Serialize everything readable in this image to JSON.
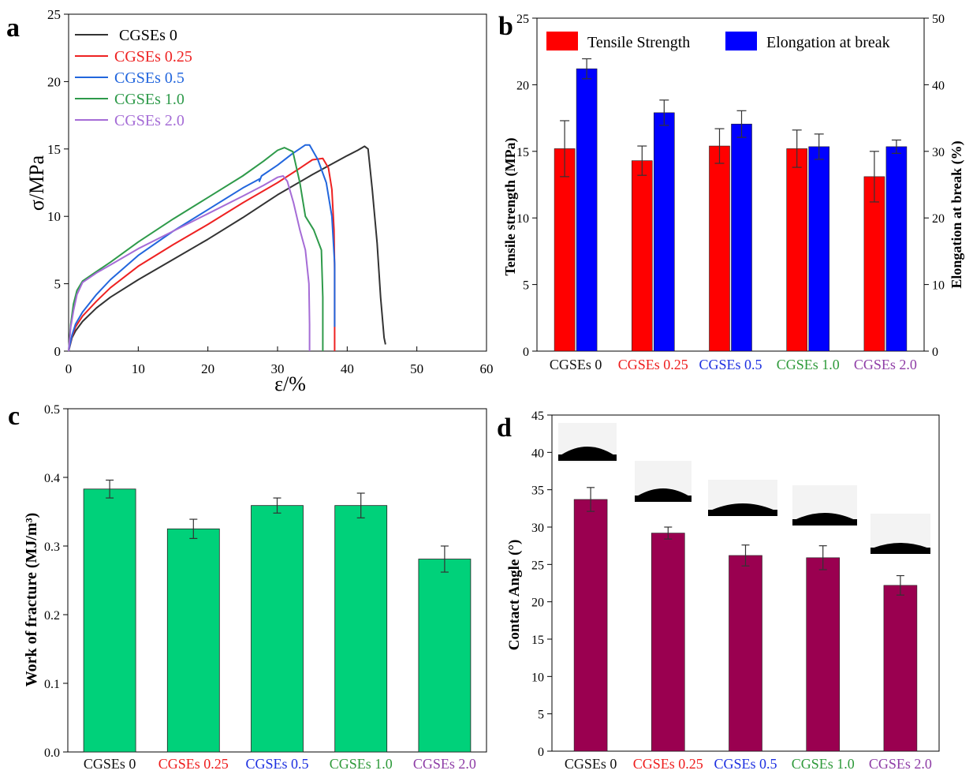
{
  "chart_data": [
    {
      "panel": "a",
      "type": "line",
      "xlabel": "ε/%",
      "ylabel": "σ/MPa",
      "xlim": [
        0,
        60
      ],
      "ylim": [
        0,
        25
      ],
      "xticks": [
        0,
        10,
        20,
        30,
        40,
        50,
        60
      ],
      "yticks": [
        0,
        5,
        10,
        15,
        20,
        25
      ],
      "legend_position": "top-left",
      "series": [
        {
          "name": "CGSEs 0",
          "color": "#333333",
          "points": [
            [
              0,
              0
            ],
            [
              0.5,
              1
            ],
            [
              1,
              1.5
            ],
            [
              2,
              2.2
            ],
            [
              4,
              3.2
            ],
            [
              6,
              4.0
            ],
            [
              10,
              5.3
            ],
            [
              15,
              6.8
            ],
            [
              20,
              8.3
            ],
            [
              25,
              9.9
            ],
            [
              30,
              11.6
            ],
            [
              35,
              13.1
            ],
            [
              40,
              14.5
            ],
            [
              41.5,
              14.9
            ],
            [
              42.5,
              15.2
            ],
            [
              43,
              15.0
            ],
            [
              43.6,
              12.0
            ],
            [
              44.3,
              8.0
            ],
            [
              44.8,
              4.0
            ],
            [
              45.3,
              1.0
            ],
            [
              45.5,
              0.5
            ]
          ]
        },
        {
          "name": "CGSEs 0.25",
          "color": "#ee2222",
          "points": [
            [
              0,
              0
            ],
            [
              0.5,
              1.1
            ],
            [
              1,
              1.8
            ],
            [
              2,
              2.6
            ],
            [
              4,
              3.7
            ],
            [
              6,
              4.7
            ],
            [
              10,
              6.3
            ],
            [
              15,
              7.9
            ],
            [
              20,
              9.4
            ],
            [
              25,
              11.0
            ],
            [
              30,
              12.5
            ],
            [
              33,
              13.5
            ],
            [
              35,
              14.2
            ],
            [
              36.5,
              14.3
            ],
            [
              37.3,
              13.6
            ],
            [
              37.8,
              12.0
            ],
            [
              38.1,
              9.0
            ],
            [
              38.2,
              6.0
            ],
            [
              38.2,
              3.0
            ],
            [
              38.2,
              0
            ]
          ]
        },
        {
          "name": "CGSEs 0.5",
          "color": "#2266dd",
          "points": [
            [
              0,
              0
            ],
            [
              0.5,
              1.2
            ],
            [
              1,
              2.0
            ],
            [
              2,
              2.9
            ],
            [
              4,
              4.2
            ],
            [
              6,
              5.3
            ],
            [
              10,
              7.1
            ],
            [
              15,
              8.9
            ],
            [
              20,
              10.5
            ],
            [
              25,
              12.1
            ],
            [
              27.5,
              12.8
            ],
            [
              27.4,
              12.6
            ],
            [
              27.7,
              13.0
            ],
            [
              30,
              13.8
            ],
            [
              32,
              14.6
            ],
            [
              34,
              15.3
            ],
            [
              34.6,
              15.3
            ],
            [
              35.8,
              14.2
            ],
            [
              37,
              12.5
            ],
            [
              37.8,
              10.0
            ],
            [
              38.2,
              6.5
            ],
            [
              38.2,
              3.0
            ],
            [
              38.2,
              1.8
            ]
          ]
        },
        {
          "name": "CGSEs 1.0",
          "color": "#2e9a4a",
          "points": [
            [
              0,
              0
            ],
            [
              0.3,
              2.0
            ],
            [
              0.7,
              3.5
            ],
            [
              1.2,
              4.5
            ],
            [
              2,
              5.2
            ],
            [
              4,
              5.9
            ],
            [
              6,
              6.6
            ],
            [
              10,
              8.1
            ],
            [
              15,
              9.8
            ],
            [
              20,
              11.4
            ],
            [
              25,
              13.0
            ],
            [
              28,
              14.1
            ],
            [
              30,
              14.9
            ],
            [
              31,
              15.1
            ],
            [
              32.2,
              14.8
            ],
            [
              33.2,
              12.5
            ],
            [
              34.0,
              10.0
            ],
            [
              35.2,
              9.0
            ],
            [
              36.3,
              7.5
            ],
            [
              36.5,
              4.0
            ],
            [
              36.5,
              0
            ]
          ]
        },
        {
          "name": "CGSEs 2.0",
          "color": "#a56cd6",
          "points": [
            [
              0,
              0
            ],
            [
              0.3,
              1.8
            ],
            [
              0.7,
              3.0
            ],
            [
              1.2,
              4.2
            ],
            [
              2,
              5.1
            ],
            [
              4,
              5.8
            ],
            [
              6,
              6.4
            ],
            [
              10,
              7.6
            ],
            [
              15,
              8.9
            ],
            [
              20,
              10.2
            ],
            [
              25,
              11.5
            ],
            [
              28,
              12.3
            ],
            [
              30,
              12.9
            ],
            [
              30.8,
              13.0
            ],
            [
              31.4,
              12.6
            ],
            [
              32.3,
              11.0
            ],
            [
              33.2,
              9.0
            ],
            [
              34.0,
              7.5
            ],
            [
              34.5,
              5.0
            ],
            [
              34.6,
              2.0
            ],
            [
              34.6,
              0
            ]
          ]
        }
      ]
    },
    {
      "panel": "b",
      "type": "bar",
      "categories": [
        "CGSEs 0",
        "CGSEs 0.25",
        "CGSEs 0.5",
        "CGSEs 1.0",
        "CGSEs 2.0"
      ],
      "category_colors": [
        "#111111",
        "#ee1c1c",
        "#1c2fe0",
        "#2e9a3a",
        "#8e3ca6"
      ],
      "ylabel": "Tensile strength (MPa)",
      "ylabel_right": "Elongation at break (%)",
      "ylim": [
        0,
        25
      ],
      "ylim_right": [
        0,
        50
      ],
      "yticks": [
        0,
        5,
        10,
        15,
        20,
        25
      ],
      "yticks_right": [
        0,
        10,
        20,
        30,
        40,
        50
      ],
      "legend_position": "top",
      "series": [
        {
          "name": "Tensile Strength",
          "color": "#ff0000",
          "axis": "left",
          "values": [
            15.2,
            14.3,
            15.4,
            15.2,
            13.1
          ],
          "errors": [
            2.1,
            1.1,
            1.3,
            1.4,
            1.9
          ]
        },
        {
          "name": "Elongation at break",
          "color": "#0000ff",
          "axis": "right",
          "values": [
            42.4,
            35.8,
            34.1,
            30.7,
            30.7
          ],
          "errors": [
            1.5,
            1.9,
            2.0,
            1.9,
            1.0
          ]
        }
      ]
    },
    {
      "panel": "c",
      "type": "bar",
      "categories": [
        "CGSEs 0",
        "CGSEs 0.25",
        "CGSEs 0.5",
        "CGSEs 1.0",
        "CGSEs 2.0"
      ],
      "category_colors": [
        "#111111",
        "#ee1c1c",
        "#1c2fe0",
        "#2e9a3a",
        "#8e3ca6"
      ],
      "ylabel": "Work of fracture (MJ/m³)",
      "ylim": [
        0,
        0.5
      ],
      "yticks": [
        "0.0",
        "0.1",
        "0.2",
        "0.3",
        "0.4",
        "0.5"
      ],
      "series": [
        {
          "name": "Work of fracture",
          "color": "#00d17a",
          "values": [
            0.383,
            0.325,
            0.359,
            0.359,
            0.281
          ],
          "errors": [
            0.013,
            0.014,
            0.011,
            0.018,
            0.019
          ]
        }
      ]
    },
    {
      "panel": "d",
      "type": "bar",
      "categories": [
        "CGSEs 0",
        "CGSEs 0.25",
        "CGSEs 0.5",
        "CGSEs 1.0",
        "CGSEs 2.0"
      ],
      "category_colors": [
        "#111111",
        "#ee1c1c",
        "#1c2fe0",
        "#2e9a3a",
        "#8e3ca6"
      ],
      "ylabel": "Contact Angle (°)",
      "ylim": [
        0,
        45
      ],
      "yticks": [
        0,
        5,
        10,
        15,
        20,
        25,
        30,
        35,
        40,
        45
      ],
      "series": [
        {
          "name": "Contact Angle",
          "color": "#9a0050",
          "values": [
            33.7,
            29.2,
            26.2,
            25.9,
            22.2
          ],
          "errors": [
            1.6,
            0.8,
            1.4,
            1.6,
            1.3
          ]
        }
      ],
      "insets": "droplet silhouette images above each bar"
    }
  ]
}
